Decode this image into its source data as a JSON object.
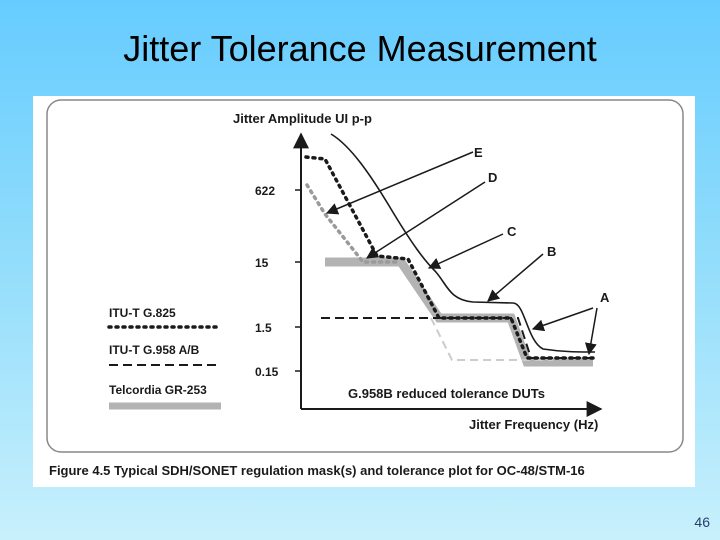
{
  "slide": {
    "title": "Jitter Tolerance Measurement",
    "page_number": "46"
  },
  "figure": {
    "y_axis_label": "Jitter Amplitude UI p-p",
    "x_axis_label": "Jitter Frequency (Hz)",
    "y_ticks": [
      "622",
      "15",
      "1.5",
      "0.15"
    ],
    "legend": [
      {
        "label": "ITU-T G.825",
        "style": "dotted"
      },
      {
        "label": "ITU-T G.958 A/B",
        "style": "dashed"
      },
      {
        "label": "Telcordia GR-253",
        "style": "thick-gray"
      }
    ],
    "curve_labels": [
      "E",
      "D",
      "C",
      "B",
      "A"
    ],
    "annotation": "G.958B reduced tolerance DUTs",
    "caption": "Figure 4.5 Typical SDH/SONET regulation mask(s) and tolerance plot for OC-48/STM-16"
  },
  "colors": {
    "background_top": "#66ccff",
    "gray_mask": "#b3b3b3",
    "light_dash": "#cccccc",
    "ink": "#1a1a1a"
  }
}
